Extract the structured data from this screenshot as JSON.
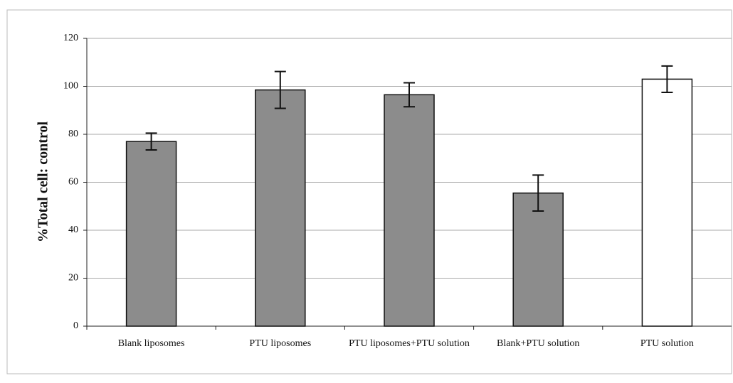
{
  "chart_data": {
    "type": "bar",
    "y_label": "%Total cell: control",
    "categories": [
      "Blank liposomes",
      "PTU liposomes",
      "PTU liposomes+PTU solution",
      "Blank+PTU solution",
      "PTU solution"
    ],
    "values": [
      77,
      98.5,
      96.5,
      55.5,
      103
    ],
    "errors": [
      3.5,
      7.7,
      5,
      7.5,
      5.5
    ],
    "colors": [
      "#8c8c8c",
      "#8c8c8c",
      "#8c8c8c",
      "#8c8c8c",
      "#ffffff"
    ],
    "ylim": [
      0,
      120
    ],
    "yticks": [
      0,
      20,
      40,
      60,
      80,
      100,
      120
    ],
    "grid": true
  }
}
